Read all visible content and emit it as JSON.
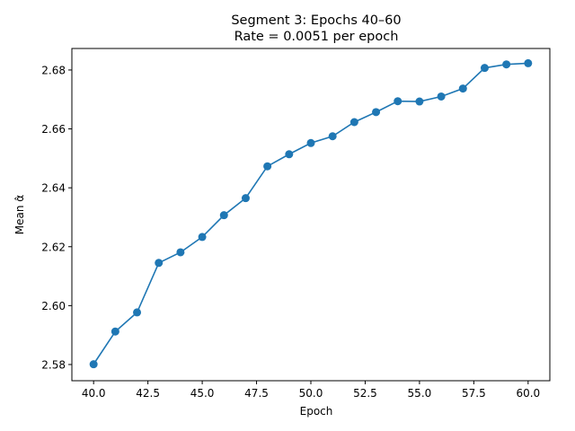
{
  "chart_data": {
    "type": "line",
    "title": "Segment 3: Epochs 40–60",
    "subtitle": "Rate = 0.0051 per epoch",
    "xlabel": "Epoch",
    "ylabel": "Mean α̂",
    "xlim": [
      39.0,
      61.0
    ],
    "ylim": [
      2.5745,
      2.6873
    ],
    "xticks": [
      40.0,
      42.5,
      45.0,
      47.5,
      50.0,
      52.5,
      55.0,
      57.5,
      60.0
    ],
    "xtick_labels": [
      "40.0",
      "42.5",
      "45.0",
      "47.5",
      "50.0",
      "52.5",
      "55.0",
      "57.5",
      "60.0"
    ],
    "yticks": [
      2.58,
      2.6,
      2.62,
      2.64,
      2.66,
      2.68
    ],
    "ytick_labels": [
      "2.58",
      "2.60",
      "2.62",
      "2.64",
      "2.66",
      "2.68"
    ],
    "grid": false,
    "legend": false,
    "color": "#1f77b4",
    "marker": "circle",
    "x": [
      40,
      41,
      42,
      43,
      44,
      45,
      46,
      47,
      48,
      49,
      50,
      51,
      52,
      53,
      54,
      55,
      56,
      57,
      58,
      59,
      60
    ],
    "y": [
      2.5801,
      2.5912,
      2.5977,
      2.6145,
      2.6181,
      2.6233,
      2.6307,
      2.6365,
      2.6473,
      2.6514,
      2.6552,
      2.6575,
      2.6623,
      2.6657,
      2.6694,
      2.6693,
      2.671,
      2.6737,
      2.6807,
      2.6819,
      2.6823
    ]
  }
}
